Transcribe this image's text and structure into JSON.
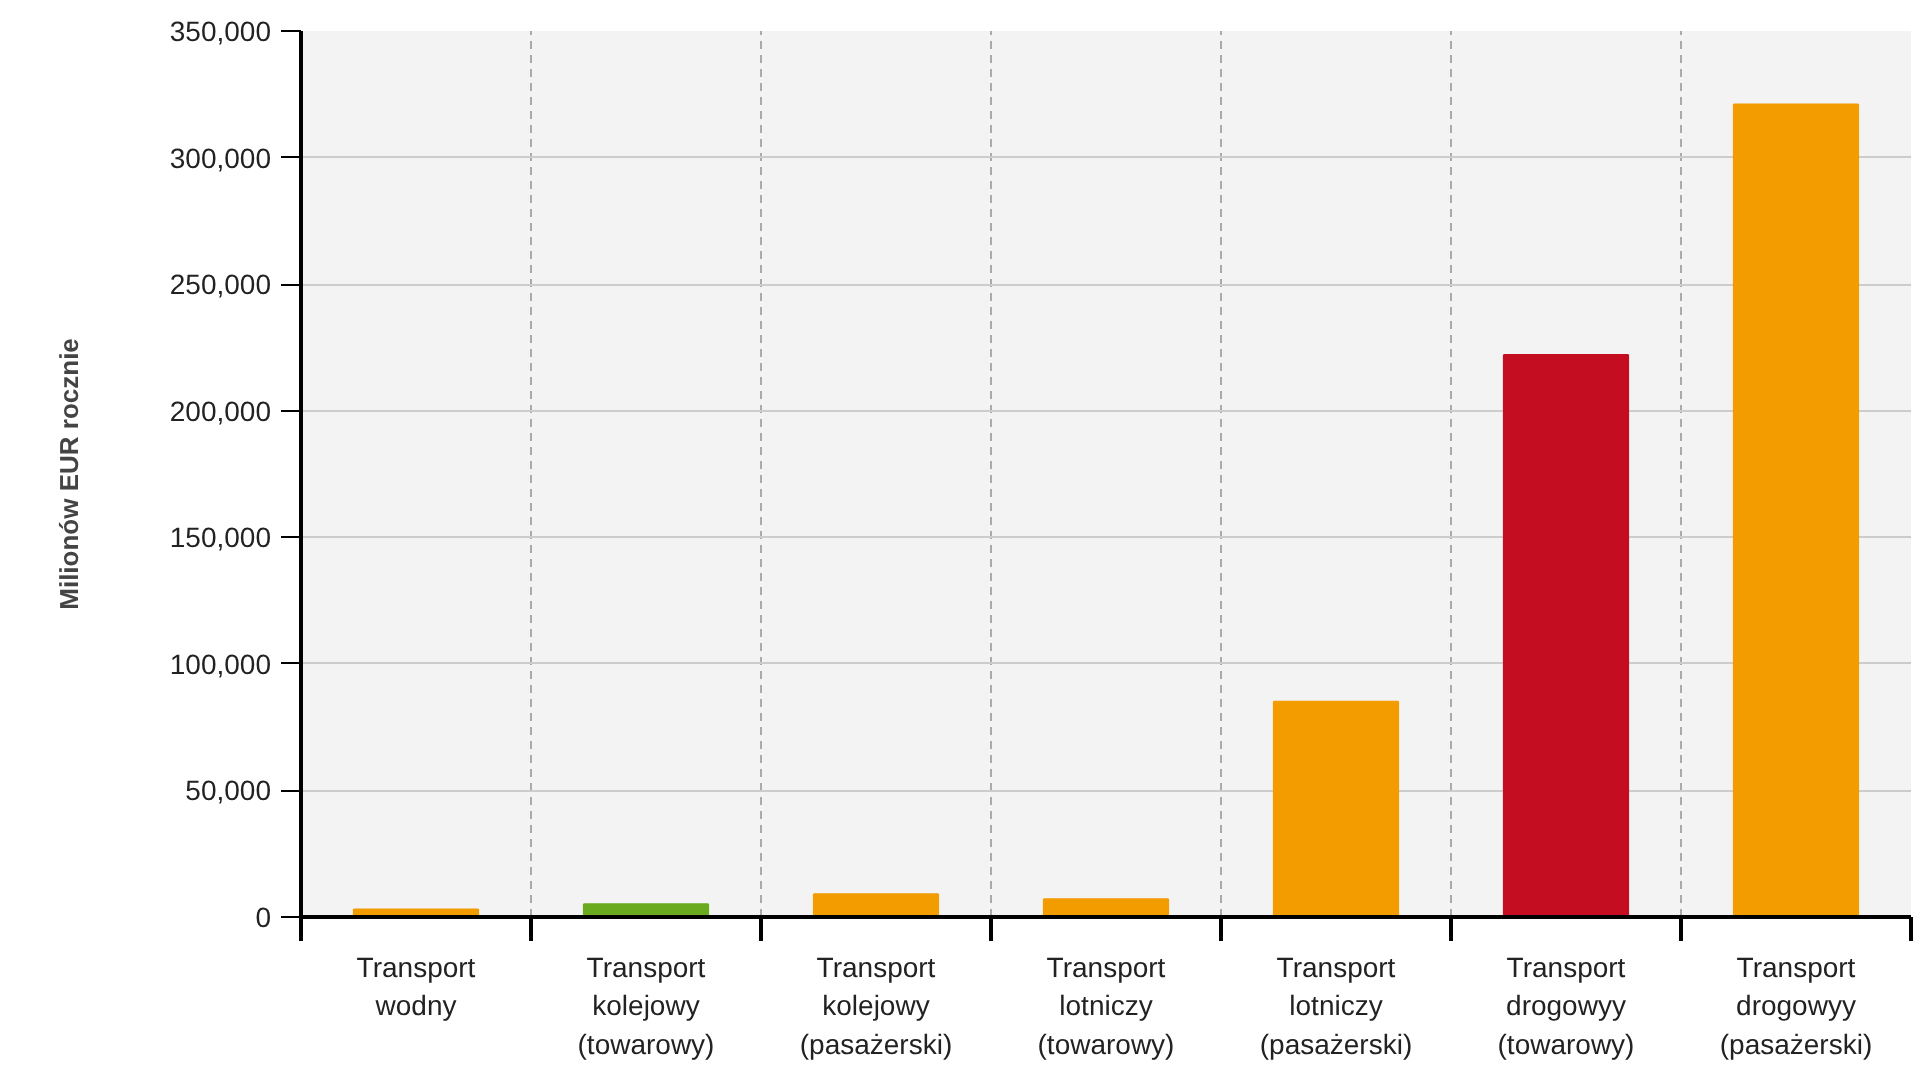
{
  "chart_data": {
    "type": "bar",
    "ylabel": "Milionów EUR rocznie",
    "categories": [
      "Transport wodny",
      "Transport kolejowy (towarowy)",
      "Transport kolejowy (pasażerski)",
      "Transport lotniczy (towarowy)",
      "Transport lotniczy (pasażerski)",
      "Transport drogowyy (towarowy)",
      "Transport drogowyy (pasażerski)"
    ],
    "values": [
      3000,
      5000,
      9000,
      7000,
      85000,
      222000,
      321000
    ],
    "colors": [
      "#f39c00",
      "#6aaa1e",
      "#f39c00",
      "#f39c00",
      "#f39c00",
      "#c40d20",
      "#f39c00"
    ],
    "ylim": [
      0,
      350000
    ],
    "yticks": [
      0,
      {
        "value": 50000,
        "label": "50,000"
      },
      {
        "value": 100000,
        "label": "100,000"
      },
      {
        "value": 150000,
        "label": "150,000"
      },
      {
        "value": 200000,
        "label": "200,000"
      },
      {
        "value": 250000,
        "label": "250,000"
      },
      {
        "value": 300000,
        "label": "300,000"
      },
      {
        "value": 350000,
        "label": "350,000"
      }
    ],
    "grid": true
  }
}
